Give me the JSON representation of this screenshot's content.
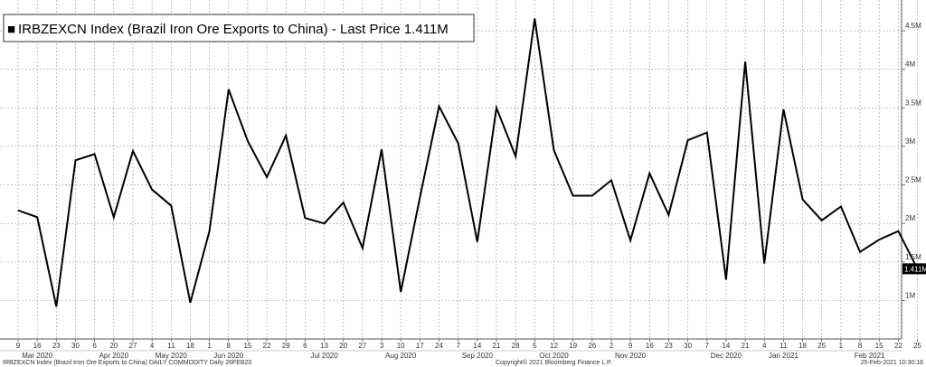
{
  "chart_data": {
    "type": "line",
    "legend": {
      "marker": "■",
      "text": "IRBZEXCN Index (Brazil Iron Ore Exports to China) - Last Price 1.411M"
    },
    "y_axis": {
      "min": 0.5,
      "max": 4.9,
      "gridlines": [
        1,
        1.5,
        2,
        2.5,
        3,
        3.5,
        4,
        4.5
      ],
      "labels": [
        "1M",
        "1.5M",
        "2M",
        "2.5M",
        "3M",
        "3.5M",
        "4M",
        "4.5M"
      ]
    },
    "last_price": {
      "value": 1.411,
      "label": "1.411M",
      "color": "#f0a030"
    },
    "series": [
      {
        "line_color": "#000000",
        "values": [
          2.17,
          2.08,
          0.92,
          2.82,
          2.9,
          2.08,
          2.94,
          2.44,
          2.23,
          0.97,
          1.9,
          3.74,
          3.07,
          2.6,
          3.14,
          2.07,
          2.0,
          2.27,
          1.68,
          2.96,
          1.11,
          2.34,
          3.52,
          3.04,
          1.76,
          3.5,
          2.87,
          4.66,
          2.95,
          2.36,
          2.36,
          2.56,
          1.78,
          2.65,
          2.11,
          3.08,
          3.18,
          1.27,
          4.1,
          1.48,
          3.48,
          2.31,
          2.04,
          2.22,
          1.63,
          1.79,
          1.9,
          1.411
        ]
      }
    ],
    "x_ticks": [
      "9",
      "16",
      "23",
      "30",
      "6",
      "20",
      "27",
      "4",
      "11",
      "18",
      "1",
      "8",
      "15",
      "22",
      "29",
      "6",
      "13",
      "20",
      "27",
      "3",
      "10",
      "17",
      "24",
      "7",
      "14",
      "21",
      "28",
      "5",
      "12",
      "19",
      "26",
      "2",
      "9",
      "16",
      "23",
      "30",
      "7",
      "14",
      "21",
      "4",
      "11",
      "18",
      "25",
      "1",
      "8",
      "15",
      "22",
      "25"
    ],
    "months": [
      {
        "label": "Mar 2020",
        "tick": 1
      },
      {
        "label": "Apr 2020",
        "tick": 5
      },
      {
        "label": "May 2020",
        "tick": 8
      },
      {
        "label": "Jun 2020",
        "tick": 11
      },
      {
        "label": "Jul 2020",
        "tick": 16
      },
      {
        "label": "Aug 2020",
        "tick": 20
      },
      {
        "label": "Sep 2020",
        "tick": 24
      },
      {
        "label": "Oct 2020",
        "tick": 28
      },
      {
        "label": "Nov 2020",
        "tick": 32
      },
      {
        "label": "Dec 2020",
        "tick": 37
      },
      {
        "label": "Jan 2021",
        "tick": 40
      },
      {
        "label": "Feb 2021",
        "tick": 44.5
      }
    ],
    "grid": true
  },
  "footer": {
    "left": "IRBZEXCN Index (Brazil Iron Ore Exports to China) DAILY COMMODITY  Daily 26FEB20",
    "center": "Copyright© 2021 Bloomberg Finance L.P.",
    "right": "25-Feb-2021 10:30:16"
  }
}
